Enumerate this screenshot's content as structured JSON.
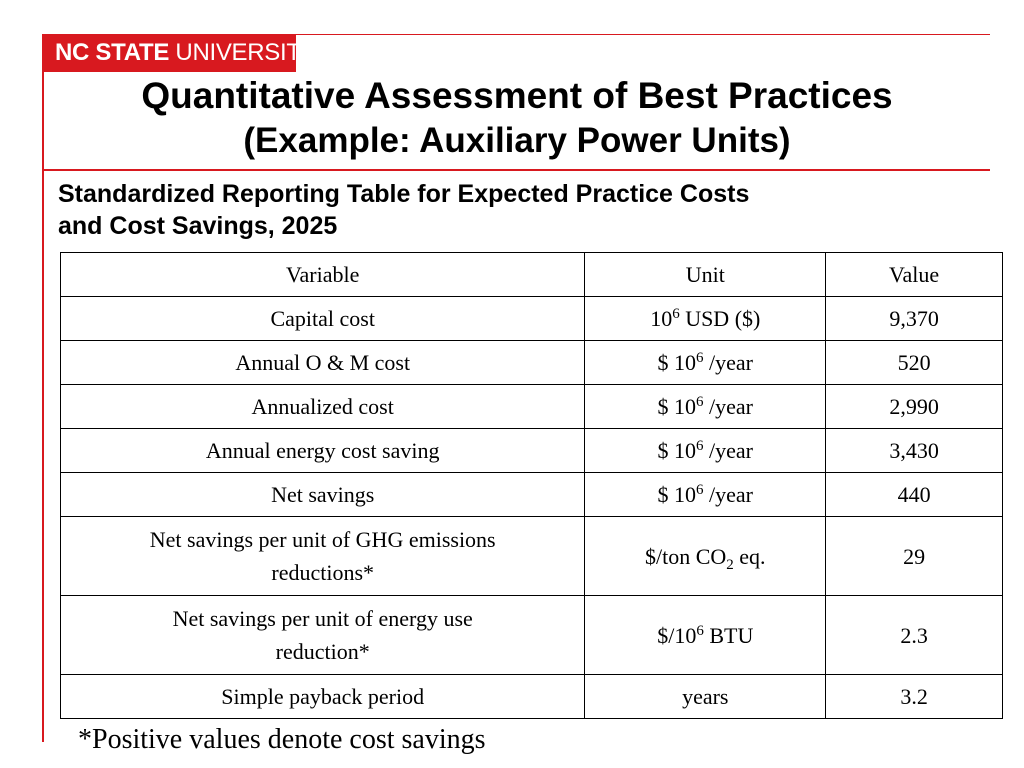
{
  "branding": {
    "logo_bold": "NC STATE",
    "logo_light": " UNIVERSITY",
    "accent_color": "#d8191f"
  },
  "title": {
    "line1": "Quantitative Assessment of Best Practices",
    "line2": "(Example: Auxiliary Power Units)"
  },
  "subtitle": {
    "line1": "Standardized Reporting Table for Expected Practice Costs",
    "line2": "and Cost Savings, 2025"
  },
  "table": {
    "headers": [
      "Variable",
      "Unit",
      "Value"
    ],
    "rows": [
      {
        "variable": "Capital cost",
        "unit": {
          "pre": "10",
          "sup": "6",
          "post": " USD ($)"
        },
        "value": "9,370"
      },
      {
        "variable": "Annual O & M cost",
        "unit": {
          "pre": "$ 10",
          "sup": "6",
          "post": " /year"
        },
        "value": "520"
      },
      {
        "variable": "Annualized cost",
        "unit": {
          "pre": "$ 10",
          "sup": "6",
          "post": " /year"
        },
        "value": "2,990"
      },
      {
        "variable": "Annual energy cost saving",
        "unit": {
          "pre": "$ 10",
          "sup": "6",
          "post": " /year"
        },
        "value": "3,430"
      },
      {
        "variable": "Net savings",
        "unit": {
          "pre": "$ 10",
          "sup": "6",
          "post": " /year"
        },
        "value": "440"
      },
      {
        "variable_line1": "Net savings per unit of GHG emissions",
        "variable_line2": "reductions*",
        "unit": {
          "pre": "$/ton CO",
          "sub": "2",
          "post": " eq."
        },
        "value": "29"
      },
      {
        "variable_line1": "Net savings per unit of energy use",
        "variable_line2": "reduction*",
        "unit": {
          "pre": "$/10",
          "sup": "6",
          "post": " BTU"
        },
        "value": "2.3"
      },
      {
        "variable": "Simple payback period",
        "unit": {
          "text": "years"
        },
        "value": "3.2"
      }
    ]
  },
  "footnote": "*Positive values denote cost savings"
}
